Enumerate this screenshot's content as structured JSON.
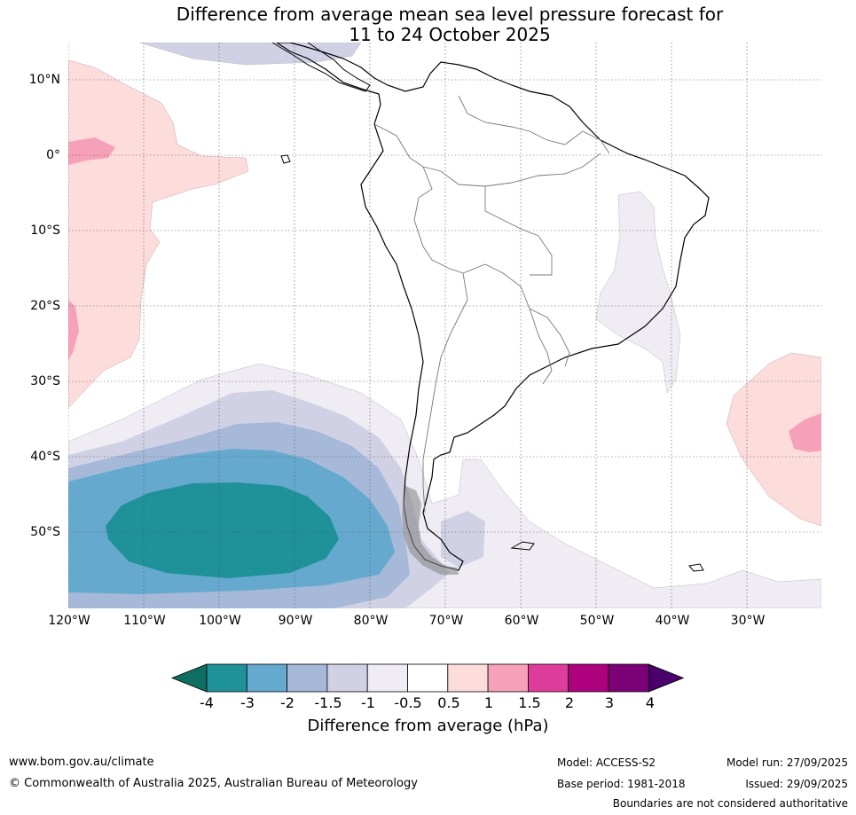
{
  "title_line1": "Difference from average mean sea level pressure forecast for",
  "title_line2": "11 to 24 October 2025",
  "latitude_labels": [
    "10°N",
    "0°",
    "10°S",
    "20°S",
    "30°S",
    "40°S",
    "50°S"
  ],
  "longitude_labels": [
    "120°W",
    "110°W",
    "100°W",
    "90°W",
    "80°W",
    "70°W",
    "60°W",
    "50°W",
    "40°W",
    "30°W"
  ],
  "colorbar": {
    "ticks": [
      "-4",
      "-3",
      "-2",
      "-1.5",
      "-1",
      "-0.5",
      "0.5",
      "1",
      "1.5",
      "2",
      "3",
      "4"
    ],
    "colors": [
      "#0d6e62",
      "#1e9199",
      "#65a9cf",
      "#a7b9d9",
      "#d1d1e5",
      "#efedf3",
      "#ffffff",
      "#fddcdc",
      "#f7a0ba",
      "#df3d9c",
      "#ad017e",
      "#7b0177",
      "#4a006a"
    ],
    "label": "Difference from average (hPa)"
  },
  "footer": {
    "website": "www.bom.gov.au/climate",
    "copyright": "© Commonwealth of Australia 2025, Australian Bureau of Meteorology",
    "model": "Model: ACCESS-S2",
    "base_period": "Base period: 1981-2018",
    "model_run": "Model run: 27/09/2025",
    "issued": "Issued: 29/09/2025",
    "disclaimer": "Boundaries are not considered authoritative"
  },
  "colors": {
    "land_outline": "#000000",
    "border": "#777777",
    "grid": "#555555"
  }
}
